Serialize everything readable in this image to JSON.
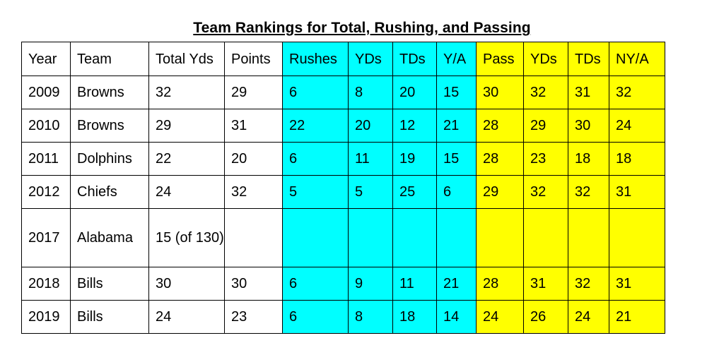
{
  "title": "Team Rankings for Total, Rushing, and Passing",
  "colors": {
    "rushing_bg": "#00ffff",
    "passing_bg": "#ffff00",
    "border": "#000000"
  },
  "table": {
    "headers": [
      "Year",
      "Team",
      "Total Yds",
      "Points",
      "Rushes",
      "YDs",
      "TDs",
      "Y/A",
      "Pass",
      "YDs",
      "TDs",
      "NY/A"
    ],
    "rows": [
      [
        "2009",
        "Browns",
        "32",
        "29",
        "6",
        "8",
        "20",
        "15",
        "30",
        "32",
        "31",
        "32"
      ],
      [
        "2010",
        "Browns",
        "29",
        "31",
        "22",
        "20",
        "12",
        "21",
        "28",
        "29",
        "30",
        "24"
      ],
      [
        "2011",
        "Dolphins",
        "22",
        "20",
        "6",
        "11",
        "19",
        "15",
        "28",
        "23",
        "18",
        "18"
      ],
      [
        "2012",
        "Chiefs",
        "24",
        "32",
        "5",
        "5",
        "25",
        "6",
        "29",
        "32",
        "32",
        "31"
      ],
      [
        "2017",
        "Alabama",
        "15 (of 130)",
        "",
        "",
        "",
        "",
        "",
        "",
        "",
        "",
        ""
      ],
      [
        "2018",
        "Bills",
        "30",
        "30",
        "6",
        "9",
        "11",
        "21",
        "28",
        "31",
        "32",
        "31"
      ],
      [
        "2019",
        "Bills",
        "24",
        "23",
        "6",
        "8",
        "18",
        "14",
        "24",
        "26",
        "24",
        "21"
      ]
    ]
  }
}
